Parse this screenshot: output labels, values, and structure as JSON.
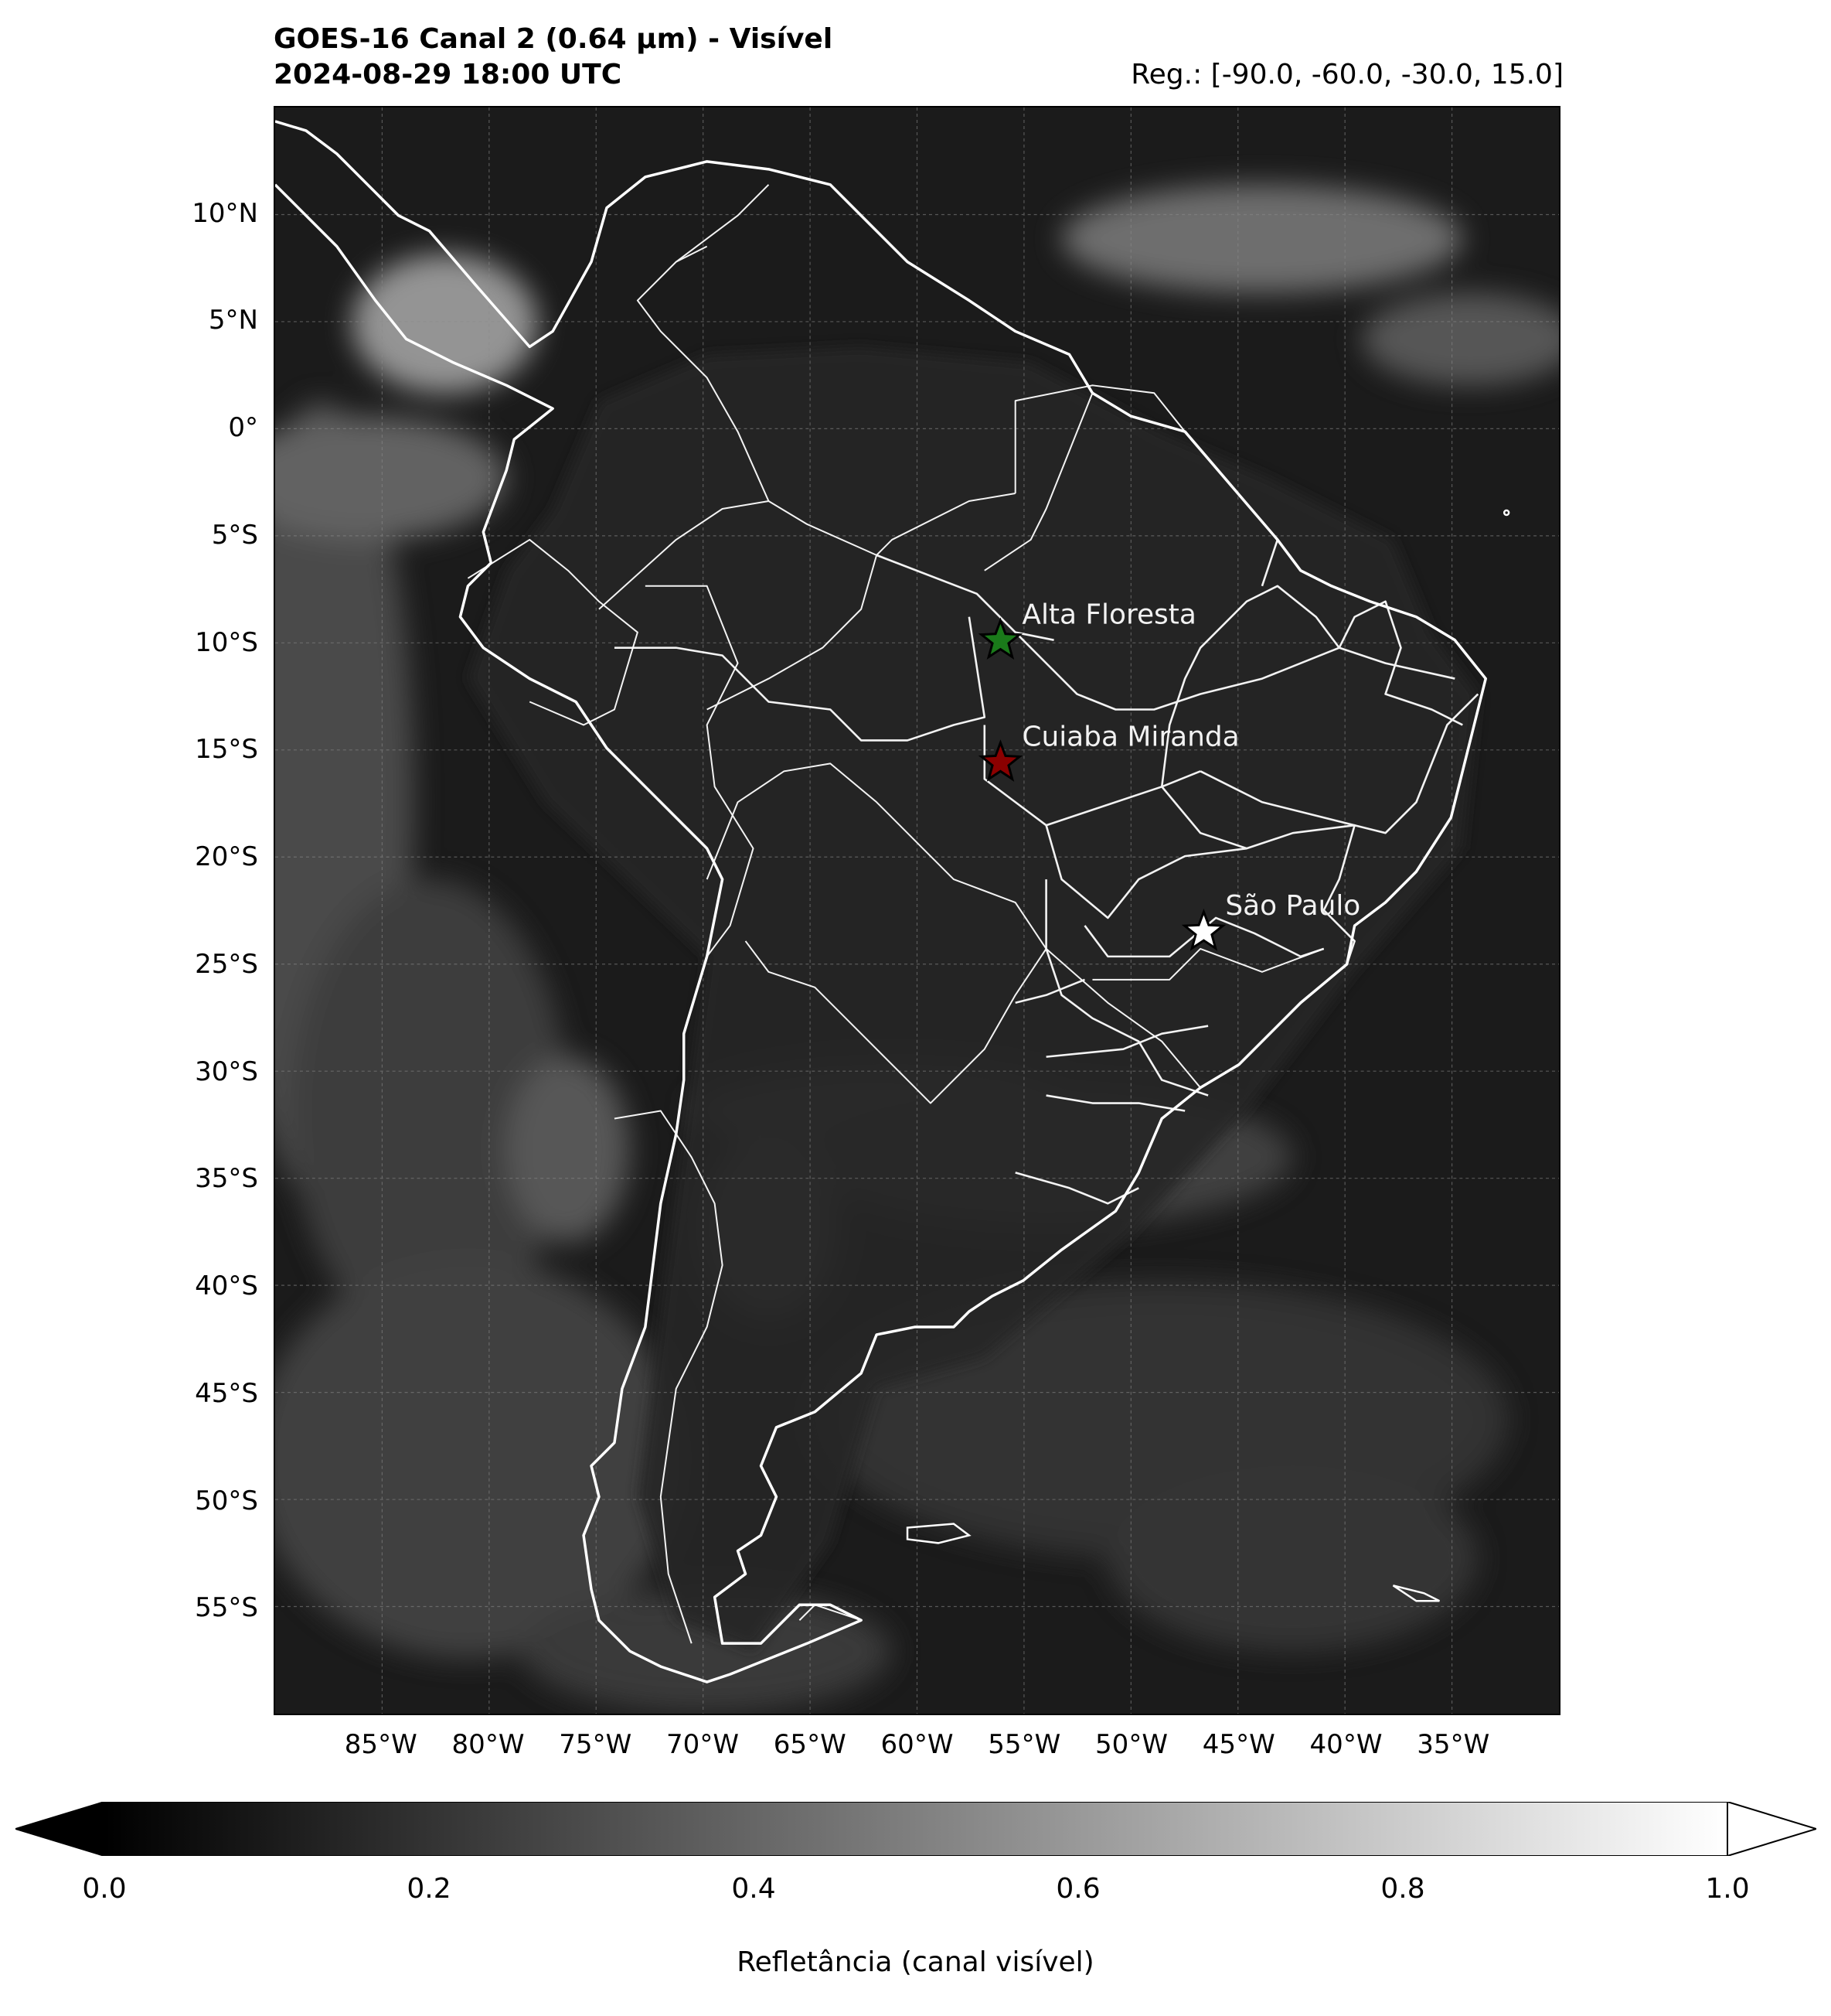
{
  "title": {
    "line1": "GOES-16 Canal 2 (0.64 µm) - Visível",
    "line2": "2024-08-29 18:00 UTC"
  },
  "region_label": "Reg.: [-90.0, -60.0, -30.0, 15.0]",
  "map": {
    "extent": {
      "lon_min": -90.0,
      "lat_min": -60.0,
      "lon_max": -30.0,
      "lat_max": 15.0
    },
    "gridlines": true,
    "lat_ticks": [
      "10°N",
      "5°N",
      "0°",
      "5°S",
      "10°S",
      "15°S",
      "20°S",
      "25°S",
      "30°S",
      "35°S",
      "40°S",
      "45°S",
      "50°S",
      "55°S"
    ],
    "lon_ticks": [
      "85°W",
      "80°W",
      "75°W",
      "70°W",
      "65°W",
      "60°W",
      "55°W",
      "50°W",
      "45°W",
      "40°W",
      "35°W"
    ],
    "lat_values": [
      10,
      5,
      0,
      -5,
      -10,
      -15,
      -20,
      -25,
      -30,
      -35,
      -40,
      -45,
      -50,
      -55
    ],
    "lon_values": [
      -85,
      -80,
      -75,
      -70,
      -65,
      -60,
      -55,
      -50,
      -45,
      -40,
      -35
    ],
    "cities": [
      {
        "name": "Alta Floresta",
        "lon": -56.1,
        "lat": -9.9,
        "marker_color": "#1a7a1a",
        "marker": "star"
      },
      {
        "name": "Cuiaba Miranda",
        "lon": -56.1,
        "lat": -15.6,
        "marker_color": "#8b0000",
        "marker": "star"
      },
      {
        "name": "São Paulo",
        "lon": -46.6,
        "lat": -23.5,
        "marker_color": "#ffffff",
        "marker": "star"
      }
    ]
  },
  "colorbar": {
    "colormap": "grayscale",
    "ticks": [
      "0.0",
      "0.2",
      "0.4",
      "0.6",
      "0.8",
      "1.0"
    ],
    "tick_values": [
      0.0,
      0.2,
      0.4,
      0.6,
      0.8,
      1.0
    ],
    "extend": "both",
    "label": "Refletância (canal visível)"
  }
}
